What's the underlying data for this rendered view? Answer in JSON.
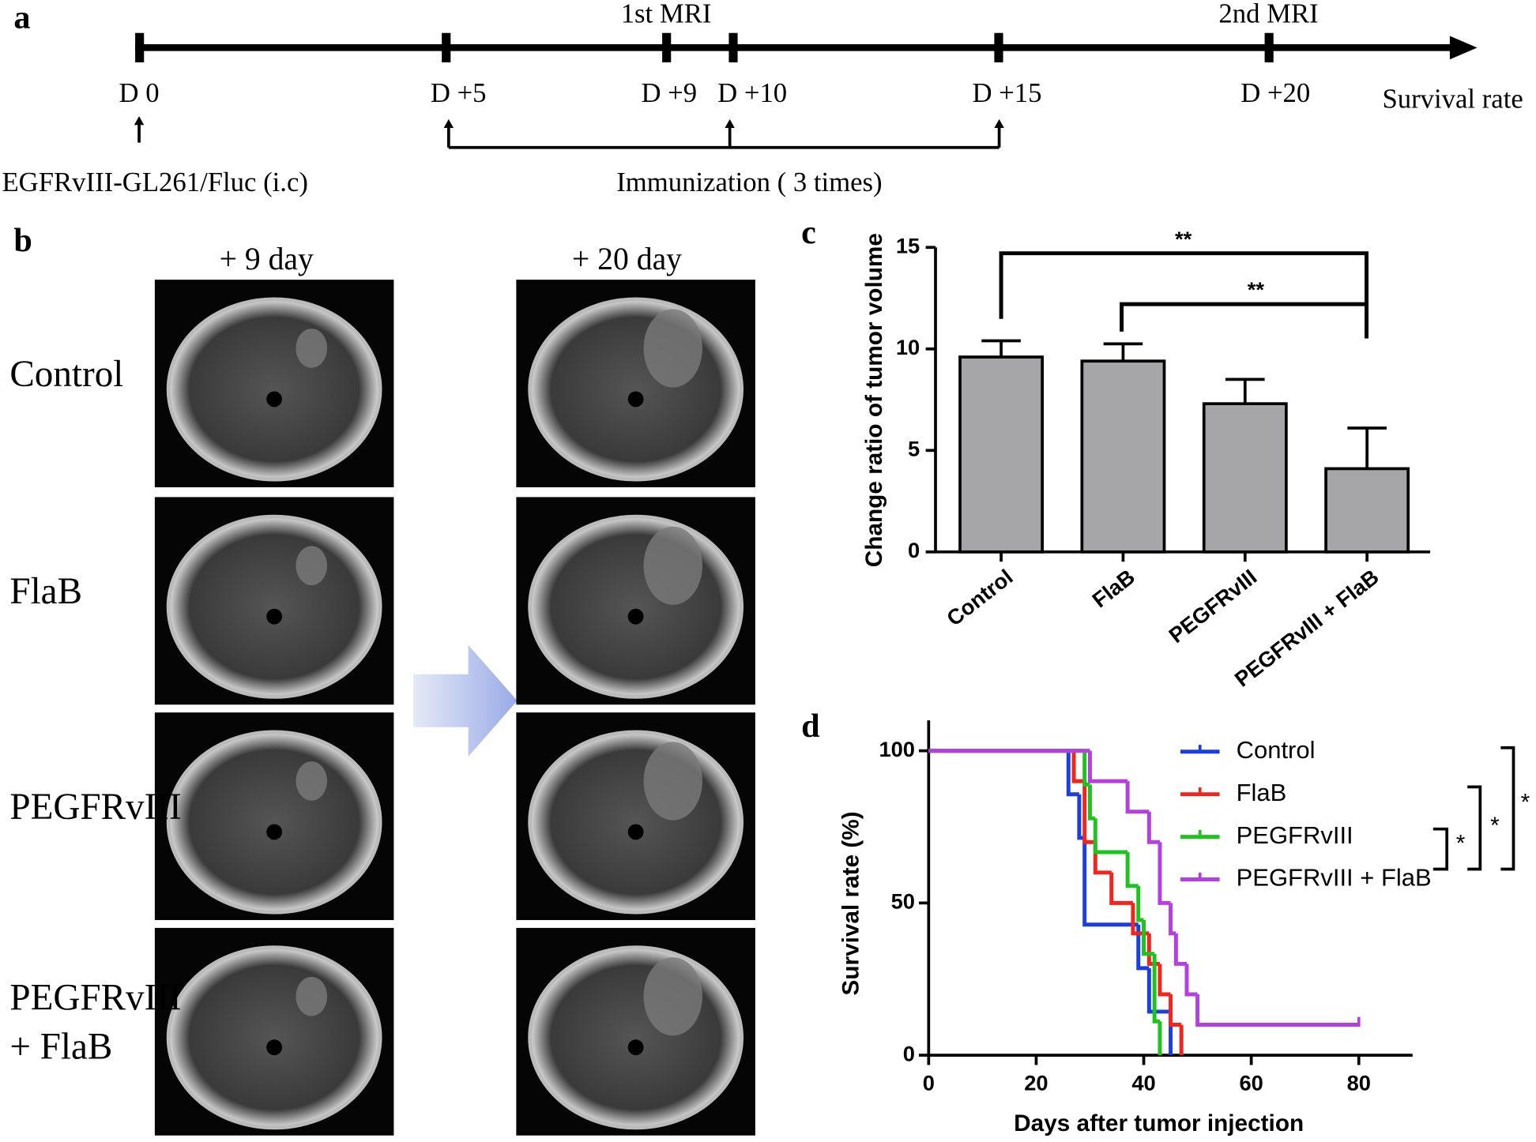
{
  "panel_labels": [
    "a",
    "b",
    "c",
    "d"
  ],
  "timeline": {
    "days": [
      "D 0",
      "D +5",
      "D +9",
      "D +10",
      "D +15",
      "D +20"
    ],
    "end_label": "Survival rate",
    "mri": [
      "1st MRI",
      "2nd MRI"
    ],
    "injection": "EGFRvIII-GL261/Fluc (i.c)",
    "immunization": "Immunization ( 3 times)"
  },
  "mri": {
    "columns": [
      "+ 9 day",
      "+ 20 day"
    ],
    "rows": [
      [
        "Control"
      ],
      [
        "FlaB"
      ],
      [
        "PEGFRvIII"
      ],
      [
        "PEGFRvIII",
        "+ FlaB"
      ]
    ]
  },
  "chart_data": [
    {
      "type": "bar",
      "ylabel": "Change ratio of tumor volume",
      "categories": [
        "Control",
        "FlaB",
        "PEGFRvIII",
        "PEGFRvIII + FlaB"
      ],
      "values": [
        9.6,
        9.4,
        7.3,
        4.1
      ],
      "errors": [
        0.8,
        0.85,
        1.2,
        2.0
      ],
      "color": "#a6a6a8",
      "ylim": [
        0,
        15
      ],
      "yticks": [
        0,
        5,
        10,
        15
      ],
      "annotations": [
        "**",
        "**"
      ]
    },
    {
      "type": "line",
      "xlabel": "Days after tumor injection",
      "ylabel": "Survival rate (%)",
      "xlim": [
        0,
        90
      ],
      "ylim": [
        0,
        110
      ],
      "xticks": [
        0,
        20,
        40,
        60,
        80
      ],
      "yticks": [
        0,
        50,
        100
      ],
      "legend": "top-right",
      "annotations": [
        "*",
        "*",
        "*"
      ],
      "series": [
        {
          "name": "Control",
          "color": "#1a3fe0",
          "x": [
            0,
            26,
            28,
            29,
            39,
            41,
            45
          ],
          "values": [
            100,
            85.7,
            71.4,
            42.9,
            28.6,
            14.3,
            0
          ]
        },
        {
          "name": "FlaB",
          "color": "#f0261c",
          "x": [
            0,
            27,
            29,
            31,
            34,
            38,
            41,
            43,
            45,
            47
          ],
          "values": [
            100,
            90,
            70,
            60,
            50,
            40,
            30,
            20,
            10,
            0
          ]
        },
        {
          "name": "PEGFRvIII",
          "color": "#1fc31f",
          "x": [
            0,
            29,
            30,
            31,
            37,
            39,
            40,
            42,
            43
          ],
          "values": [
            100,
            88.9,
            77.8,
            66.7,
            55.6,
            44.4,
            33.3,
            11.1,
            0
          ]
        },
        {
          "name": "PEGFRvIII + FlaB",
          "color": "#b440e0",
          "x": [
            0,
            30,
            37,
            41,
            43,
            45,
            46,
            48,
            50,
            80
          ],
          "values": [
            100,
            90,
            80,
            70,
            50,
            40,
            30,
            20,
            10,
            10
          ]
        }
      ]
    }
  ]
}
